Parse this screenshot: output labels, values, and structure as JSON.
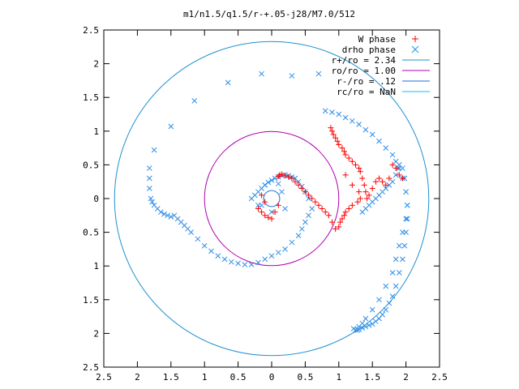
{
  "chart_data": {
    "type": "scatter",
    "title": "m1/n1.5/q1.5/r-+.05-j28/M7.0/512",
    "xlabel": "",
    "ylabel": "",
    "xlim": [
      -2.5,
      2.5
    ],
    "ylim": [
      -2.5,
      2.5
    ],
    "x_ticks": [
      -2.5,
      -2,
      -1.5,
      -1,
      -0.5,
      0,
      0.5,
      1,
      1.5,
      2,
      2.5
    ],
    "y_ticks": [
      -2.5,
      -2,
      -1.5,
      -1,
      -0.5,
      0,
      0.5,
      1,
      1.5,
      2,
      2.5
    ],
    "x_tick_labels": [
      "2.5",
      "2",
      "1.5",
      "1",
      "0.5",
      "0",
      "0.5",
      "1",
      "1.5",
      "2",
      "2.5"
    ],
    "y_tick_labels": [
      "2.5",
      "2",
      "1.5",
      "1",
      "0.5",
      "0",
      "0.5",
      "1",
      "1.5",
      "2",
      "2.5"
    ],
    "grid": false,
    "legend_position": "top-right",
    "series": [
      {
        "name": "W phase",
        "marker": "+",
        "color": "#ff0000",
        "x": [
          -0.2,
          -0.15,
          -0.1,
          -0.05,
          0.0,
          0.1,
          0.12,
          0.15,
          0.2,
          0.25,
          0.3,
          0.35,
          0.4,
          0.45,
          0.5,
          0.55,
          0.6,
          0.65,
          0.7,
          0.75,
          0.8,
          0.85,
          0.9,
          0.95,
          1.0,
          1.02,
          1.05,
          1.08,
          1.1,
          1.15,
          1.2,
          0.88,
          0.9,
          0.92,
          0.95,
          0.98,
          1.0,
          1.05,
          1.08,
          1.1,
          1.15,
          1.2,
          1.25,
          1.3,
          1.32,
          1.35,
          1.38,
          1.4,
          1.42,
          1.45,
          1.5,
          1.55,
          1.6,
          1.65,
          1.7,
          1.75,
          1.8,
          1.85,
          1.9,
          1.95,
          1.1,
          1.2,
          1.3,
          1.32,
          1.28,
          -0.15,
          -0.1,
          0.05,
          0.1
        ],
        "y": [
          -0.15,
          -0.2,
          -0.25,
          -0.28,
          -0.3,
          0.33,
          0.35,
          0.36,
          0.34,
          0.32,
          0.3,
          0.25,
          0.2,
          0.15,
          0.1,
          0.05,
          0.0,
          -0.05,
          -0.1,
          -0.15,
          -0.2,
          -0.25,
          -0.35,
          -0.45,
          -0.42,
          -0.35,
          -0.3,
          -0.25,
          -0.2,
          -0.15,
          -0.1,
          1.05,
          1.0,
          0.95,
          0.9,
          0.85,
          0.8,
          0.75,
          0.7,
          0.65,
          0.6,
          0.55,
          0.5,
          0.45,
          0.4,
          0.3,
          0.2,
          0.1,
          0.0,
          0.05,
          0.15,
          0.25,
          0.3,
          0.25,
          0.2,
          0.3,
          0.5,
          0.45,
          0.35,
          0.3,
          0.35,
          0.2,
          0.1,
          0.0,
          -0.05,
          0.05,
          -0.05,
          -0.2,
          -0.1
        ]
      },
      {
        "name": "drho phase",
        "marker": "x",
        "color": "#2e8fe8",
        "x": [
          -0.15,
          0.3,
          0.7,
          -0.65,
          -1.15,
          -1.5,
          -1.75,
          -1.82,
          -1.82,
          -1.82,
          -1.8,
          -1.78,
          -1.75,
          -1.7,
          -1.65,
          -1.6,
          -1.55,
          -1.5,
          -1.45,
          -1.4,
          -1.35,
          -1.3,
          -1.25,
          -1.2,
          -1.1,
          -1.0,
          -0.9,
          -0.8,
          -0.7,
          -0.6,
          -0.5,
          -0.4,
          -0.3,
          -0.2,
          -0.1,
          0.0,
          0.1,
          0.2,
          0.3,
          0.4,
          0.45,
          0.5,
          0.55,
          0.6,
          0.55,
          0.5,
          0.45,
          0.4,
          0.35,
          0.3,
          0.25,
          0.2,
          0.15,
          0.1,
          0.05,
          0.0,
          -0.05,
          -0.1,
          -0.15,
          -0.2,
          -0.25,
          -0.3,
          -0.2,
          0.0,
          0.2,
          -0.15,
          -0.1,
          0.1,
          0.15,
          0.8,
          0.9,
          1.0,
          1.1,
          1.2,
          1.3,
          1.4,
          1.5,
          1.6,
          1.7,
          1.8,
          1.85,
          1.9,
          1.95,
          2.0,
          2.02,
          2.02,
          2.0,
          1.98,
          1.95,
          1.9,
          1.85,
          1.8,
          1.75,
          1.7,
          1.65,
          1.6,
          1.55,
          1.5,
          1.45,
          1.4,
          1.35,
          1.3,
          1.28,
          1.25,
          1.22,
          1.3,
          1.35,
          1.4,
          1.5,
          1.6,
          1.7,
          1.8,
          1.85,
          1.9,
          1.95,
          2.0,
          2.02,
          2.0,
          1.98,
          1.95,
          1.9,
          1.88,
          1.85,
          1.8,
          1.75,
          1.7,
          1.65,
          1.6,
          1.55,
          1.5,
          1.45,
          1.4,
          1.35
        ],
        "y": [
          1.85,
          1.82,
          1.85,
          1.72,
          1.45,
          1.07,
          0.72,
          0.45,
          0.3,
          0.15,
          0.0,
          -0.05,
          -0.1,
          -0.15,
          -0.2,
          -0.23,
          -0.25,
          -0.27,
          -0.25,
          -0.3,
          -0.35,
          -0.4,
          -0.45,
          -0.5,
          -0.6,
          -0.7,
          -0.78,
          -0.85,
          -0.9,
          -0.94,
          -0.96,
          -0.98,
          -0.98,
          -0.95,
          -0.9,
          -0.85,
          -0.8,
          -0.75,
          -0.65,
          -0.55,
          -0.45,
          -0.35,
          -0.25,
          -0.15,
          0.0,
          0.1,
          0.18,
          0.25,
          0.3,
          0.32,
          0.34,
          0.35,
          0.34,
          0.32,
          0.3,
          0.27,
          0.24,
          0.2,
          0.15,
          0.1,
          0.05,
          0.0,
          -0.1,
          -0.2,
          -0.15,
          -0.1,
          0.2,
          0.22,
          0.1,
          1.3,
          1.28,
          1.25,
          1.2,
          1.15,
          1.1,
          1.02,
          0.95,
          0.85,
          0.75,
          0.65,
          0.55,
          0.45,
          0.3,
          0.1,
          -0.1,
          -0.3,
          -0.5,
          -0.7,
          -0.9,
          -1.1,
          -1.3,
          -1.45,
          -1.55,
          -1.65,
          -1.72,
          -1.78,
          -1.82,
          -1.86,
          -1.88,
          -1.9,
          -1.92,
          -1.94,
          -1.95,
          -1.95,
          -1.93,
          -1.9,
          -1.85,
          -1.78,
          -1.65,
          -1.5,
          -1.3,
          -1.1,
          -0.9,
          -0.7,
          -0.5,
          -0.3,
          -0.1,
          0.1,
          0.3,
          0.45,
          0.5,
          0.45,
          0.35,
          0.25,
          0.2,
          0.15,
          0.1,
          0.05,
          0.0,
          -0.05,
          -0.1,
          -0.15,
          -0.2
        ]
      },
      {
        "name": "r+/ro = 2.34",
        "kind": "circle",
        "radius": 2.34,
        "color": "#1e90d2"
      },
      {
        "name": "ro/ro = 1.00",
        "kind": "circle",
        "radius": 1.0,
        "color": "#b000b0"
      },
      {
        "name": "r-/ro = .12",
        "kind": "circle",
        "radius": 0.12,
        "color": "#1a73c8"
      },
      {
        "name": "rc/ro = NaN",
        "kind": "circle",
        "radius": null,
        "color": "#00c8e6"
      }
    ]
  }
}
